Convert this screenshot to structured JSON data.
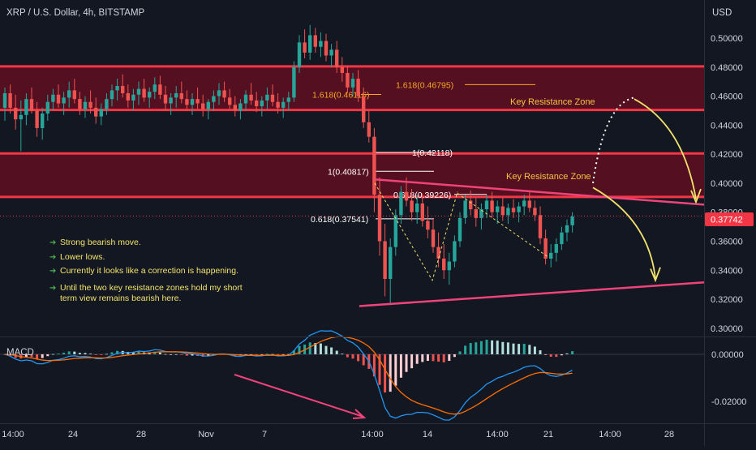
{
  "header": {
    "symbol_title": "XRP / U.S. Dollar, 4h, BITSTAMP",
    "currency": "USD"
  },
  "colors": {
    "background": "#131722",
    "bull": "#26a69a",
    "bear": "#ef5350",
    "zone_fill": "#5c1020",
    "zone_line": "#f23645",
    "triangle_line": "#f0437a",
    "yellow": "#f2e36b",
    "orange": "#f6a623",
    "price_badge": "#f23645",
    "macd_line": "#2196f3",
    "signal_line": "#ff6d00"
  },
  "chart_data": {
    "type": "candlestick",
    "price_axis": {
      "ticks": [
        "0.50000",
        "0.48000",
        "0.46000",
        "0.44000",
        "0.42000",
        "0.40000",
        "0.38000",
        "0.36000",
        "0.34000",
        "0.32000",
        "0.30000"
      ],
      "range": [
        0.296,
        0.5095
      ]
    },
    "current_price": "0.37742",
    "time_axis": {
      "labels": [
        "14:00",
        "24",
        "28",
        "Nov",
        "7",
        "14:00",
        "14",
        "14:00",
        "21",
        "14:00",
        "28"
      ]
    },
    "series": [
      {
        "name": "XRP / U.S. Dollar",
        "values": [
          [
            0.452,
            0.466,
            0.443,
            0.462
          ],
          [
            0.462,
            0.468,
            0.448,
            0.452
          ],
          [
            0.452,
            0.461,
            0.437,
            0.444
          ],
          [
            0.444,
            0.457,
            0.422,
            0.447
          ],
          [
            0.447,
            0.462,
            0.44,
            0.458
          ],
          [
            0.458,
            0.466,
            0.448,
            0.45
          ],
          [
            0.45,
            0.456,
            0.432,
            0.438
          ],
          [
            0.438,
            0.452,
            0.43,
            0.448
          ],
          [
            0.448,
            0.461,
            0.443,
            0.456
          ],
          [
            0.456,
            0.465,
            0.45,
            0.461
          ],
          [
            0.461,
            0.468,
            0.452,
            0.455
          ],
          [
            0.455,
            0.463,
            0.447,
            0.459
          ],
          [
            0.459,
            0.47,
            0.452,
            0.464
          ],
          [
            0.464,
            0.472,
            0.455,
            0.458
          ],
          [
            0.458,
            0.463,
            0.447,
            0.451
          ],
          [
            0.451,
            0.46,
            0.445,
            0.456
          ],
          [
            0.456,
            0.464,
            0.448,
            0.452
          ],
          [
            0.452,
            0.459,
            0.441,
            0.446
          ],
          [
            0.446,
            0.455,
            0.44,
            0.451
          ],
          [
            0.451,
            0.462,
            0.447,
            0.458
          ],
          [
            0.458,
            0.468,
            0.453,
            0.464
          ],
          [
            0.464,
            0.472,
            0.457,
            0.467
          ],
          [
            0.467,
            0.475,
            0.459,
            0.462
          ],
          [
            0.462,
            0.468,
            0.452,
            0.457
          ],
          [
            0.457,
            0.465,
            0.45,
            0.461
          ],
          [
            0.461,
            0.47,
            0.454,
            0.465
          ],
          [
            0.465,
            0.472,
            0.456,
            0.459
          ],
          [
            0.459,
            0.466,
            0.452,
            0.463
          ],
          [
            0.463,
            0.473,
            0.458,
            0.468
          ],
          [
            0.468,
            0.474,
            0.458,
            0.461
          ],
          [
            0.461,
            0.467,
            0.45,
            0.455
          ],
          [
            0.455,
            0.462,
            0.447,
            0.459
          ],
          [
            0.459,
            0.467,
            0.452,
            0.462
          ],
          [
            0.462,
            0.47,
            0.455,
            0.458
          ],
          [
            0.458,
            0.464,
            0.45,
            0.454
          ],
          [
            0.454,
            0.462,
            0.447,
            0.458
          ],
          [
            0.458,
            0.466,
            0.451,
            0.455
          ],
          [
            0.455,
            0.461,
            0.446,
            0.451
          ],
          [
            0.451,
            0.458,
            0.444,
            0.456
          ],
          [
            0.456,
            0.464,
            0.45,
            0.46
          ],
          [
            0.46,
            0.469,
            0.454,
            0.464
          ],
          [
            0.464,
            0.47,
            0.456,
            0.459
          ],
          [
            0.459,
            0.465,
            0.451,
            0.454
          ],
          [
            0.454,
            0.46,
            0.446,
            0.45
          ],
          [
            0.45,
            0.458,
            0.444,
            0.455
          ],
          [
            0.455,
            0.464,
            0.45,
            0.461
          ],
          [
            0.461,
            0.469,
            0.454,
            0.457
          ],
          [
            0.457,
            0.463,
            0.449,
            0.453
          ],
          [
            0.453,
            0.46,
            0.446,
            0.457
          ],
          [
            0.457,
            0.466,
            0.451,
            0.461
          ],
          [
            0.461,
            0.468,
            0.453,
            0.456
          ],
          [
            0.456,
            0.462,
            0.448,
            0.452
          ],
          [
            0.452,
            0.459,
            0.445,
            0.456
          ],
          [
            0.456,
            0.463,
            0.45,
            0.459
          ],
          [
            0.459,
            0.484,
            0.456,
            0.48
          ],
          [
            0.48,
            0.502,
            0.476,
            0.497
          ],
          [
            0.497,
            0.506,
            0.486,
            0.49
          ],
          [
            0.49,
            0.509,
            0.485,
            0.502
          ],
          [
            0.502,
            0.507,
            0.49,
            0.494
          ],
          [
            0.494,
            0.504,
            0.487,
            0.498
          ],
          [
            0.498,
            0.503,
            0.484,
            0.488
          ],
          [
            0.488,
            0.496,
            0.48,
            0.492
          ],
          [
            0.492,
            0.498,
            0.476,
            0.48
          ],
          [
            0.48,
            0.487,
            0.47,
            0.476
          ],
          [
            0.476,
            0.481,
            0.462,
            0.466
          ],
          [
            0.466,
            0.476,
            0.46,
            0.472
          ],
          [
            0.472,
            0.478,
            0.456,
            0.46
          ],
          [
            0.46,
            0.466,
            0.438,
            0.442
          ],
          [
            0.442,
            0.45,
            0.428,
            0.432
          ],
          [
            0.432,
            0.438,
            0.38,
            0.392
          ],
          [
            0.392,
            0.404,
            0.35,
            0.36
          ],
          [
            0.36,
            0.372,
            0.322,
            0.334
          ],
          [
            0.334,
            0.362,
            0.316,
            0.356
          ],
          [
            0.356,
            0.382,
            0.35,
            0.378
          ],
          [
            0.378,
            0.398,
            0.372,
            0.394
          ],
          [
            0.394,
            0.404,
            0.384,
            0.388
          ],
          [
            0.388,
            0.396,
            0.374,
            0.38
          ],
          [
            0.38,
            0.392,
            0.372,
            0.386
          ],
          [
            0.386,
            0.393,
            0.37,
            0.374
          ],
          [
            0.374,
            0.384,
            0.362,
            0.368
          ],
          [
            0.368,
            0.376,
            0.352,
            0.356
          ],
          [
            0.356,
            0.366,
            0.342,
            0.348
          ],
          [
            0.348,
            0.358,
            0.334,
            0.34
          ],
          [
            0.34,
            0.352,
            0.33,
            0.346
          ],
          [
            0.346,
            0.364,
            0.342,
            0.36
          ],
          [
            0.36,
            0.38,
            0.356,
            0.376
          ],
          [
            0.376,
            0.392,
            0.372,
            0.388
          ],
          [
            0.388,
            0.395,
            0.378,
            0.382
          ],
          [
            0.382,
            0.39,
            0.37,
            0.376
          ],
          [
            0.376,
            0.386,
            0.368,
            0.382
          ],
          [
            0.382,
            0.392,
            0.376,
            0.388
          ],
          [
            0.388,
            0.394,
            0.376,
            0.38
          ],
          [
            0.38,
            0.388,
            0.372,
            0.384
          ],
          [
            0.384,
            0.39,
            0.374,
            0.378
          ],
          [
            0.378,
            0.386,
            0.372,
            0.383
          ],
          [
            0.383,
            0.389,
            0.376,
            0.38
          ],
          [
            0.38,
            0.387,
            0.373,
            0.384
          ],
          [
            0.384,
            0.392,
            0.378,
            0.388
          ],
          [
            0.388,
            0.394,
            0.38,
            0.383
          ],
          [
            0.383,
            0.388,
            0.374,
            0.378
          ],
          [
            0.378,
            0.384,
            0.358,
            0.362
          ],
          [
            0.362,
            0.368,
            0.344,
            0.348
          ],
          [
            0.348,
            0.358,
            0.342,
            0.352
          ],
          [
            0.352,
            0.362,
            0.346,
            0.358
          ],
          [
            0.358,
            0.37,
            0.354,
            0.366
          ],
          [
            0.366,
            0.375,
            0.36,
            0.371
          ],
          [
            0.371,
            0.38,
            0.366,
            0.377
          ]
        ]
      }
    ],
    "macd": {
      "label": "MACD",
      "ticks": [
        "0.00000",
        "-0.02000"
      ],
      "range": [
        -0.0285,
        0.0065
      ]
    },
    "fib_levels": [
      {
        "label": "1.618(0.46795)",
        "value": 0.46795,
        "color": "orange"
      },
      {
        "label": "1.618(0.46116)",
        "value": 0.46116,
        "color": "orange"
      },
      {
        "label": "1(0.42118)",
        "value": 0.42118,
        "color": "white"
      },
      {
        "label": "1(0.40817)",
        "value": 0.40817,
        "color": "white"
      },
      {
        "label": "0.618(0.39226)",
        "value": 0.39226,
        "color": "white"
      },
      {
        "label": "0.618(0.37541)",
        "value": 0.37541,
        "color": "white"
      }
    ],
    "zones": [
      {
        "label": "Key Resistance Zone",
        "top": 0.4805,
        "bottom": 0.4505
      },
      {
        "label": "Key Resistance Zone",
        "top": 0.4205,
        "bottom": 0.3905
      }
    ],
    "notes": [
      "Strong bearish move.",
      "Lower lows.",
      "Currently it looks like a correction is happening.",
      "Until the two key resistance zones hold my short",
      "term view remains bearish here."
    ],
    "grid": false
  }
}
